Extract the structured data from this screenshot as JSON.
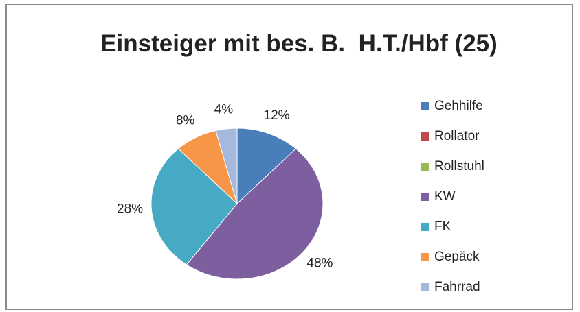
{
  "chart_data": {
    "type": "pie",
    "title": "Einsteiger mit bes. B.  H.T./Hbf (25)",
    "categories": [
      "Gehhilfe",
      "Rollator",
      "Rollstuhl",
      "KW",
      "FK",
      "Gepäck",
      "Fahrrad"
    ],
    "values": [
      12,
      0,
      0,
      48,
      28,
      8,
      4
    ],
    "value_labels": [
      "12%",
      null,
      null,
      "48%",
      "28%",
      "8%",
      "4%"
    ],
    "colors": [
      "#4a7ebb",
      "#be4b48",
      "#98b954",
      "#7d5fa0",
      "#46aac5",
      "#f79646",
      "#a5b9de"
    ],
    "legend": "right"
  }
}
